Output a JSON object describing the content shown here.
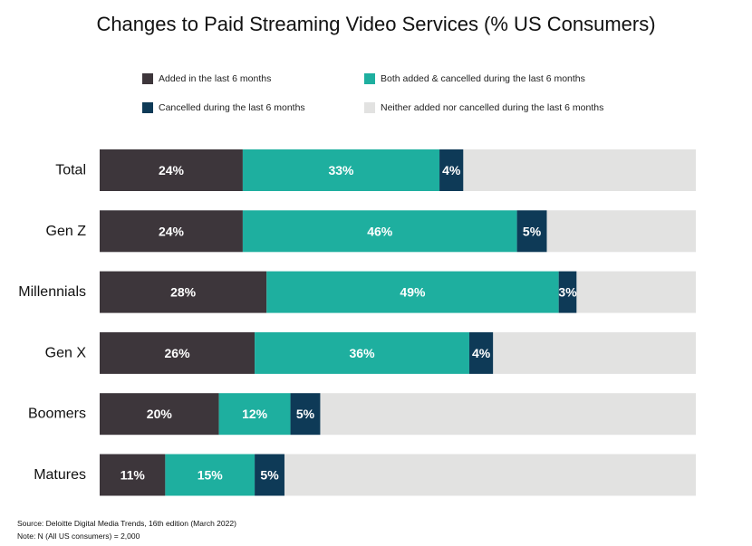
{
  "chart_data": {
    "type": "bar",
    "orientation": "horizontal",
    "stacked": true,
    "title": "Changes to Paid Streaming Video Services (% US Consumers)",
    "categories": [
      "Total",
      "Gen Z",
      "Millennials",
      "Gen X",
      "Boomers",
      "Matures"
    ],
    "series": [
      {
        "name": "Added in the last 6 months",
        "color": "#3d363b",
        "values": [
          24,
          24,
          28,
          26,
          20,
          11
        ],
        "labels": [
          "24%",
          "24%",
          "28%",
          "26%",
          "20%",
          "11%"
        ]
      },
      {
        "name": "Both added & cancelled during the last 6 months",
        "color": "#1eaf9f",
        "values": [
          33,
          46,
          49,
          36,
          12,
          15
        ],
        "labels": [
          "33%",
          "46%",
          "49%",
          "36%",
          "12%",
          "15%"
        ]
      },
      {
        "name": "Cancelled during the last 6 months",
        "color": "#0e3a57",
        "values": [
          4,
          5,
          3,
          4,
          5,
          5
        ],
        "labels": [
          "4%",
          "5%",
          "3%",
          "4%",
          "5%",
          "5%"
        ]
      },
      {
        "name": "Neither added nor cancelled during the last 6 months",
        "color": "#e2e2e1",
        "values": [
          39,
          25,
          20,
          34,
          63,
          69
        ]
      }
    ],
    "xlim": [
      0,
      100
    ],
    "grid": false,
    "legend_position": "top"
  },
  "footnotes": {
    "source": "Source: Deloitte Digital Media Trends, 16th edition (March 2022)",
    "note": "Note: N (All US consumers) = 2,000"
  }
}
